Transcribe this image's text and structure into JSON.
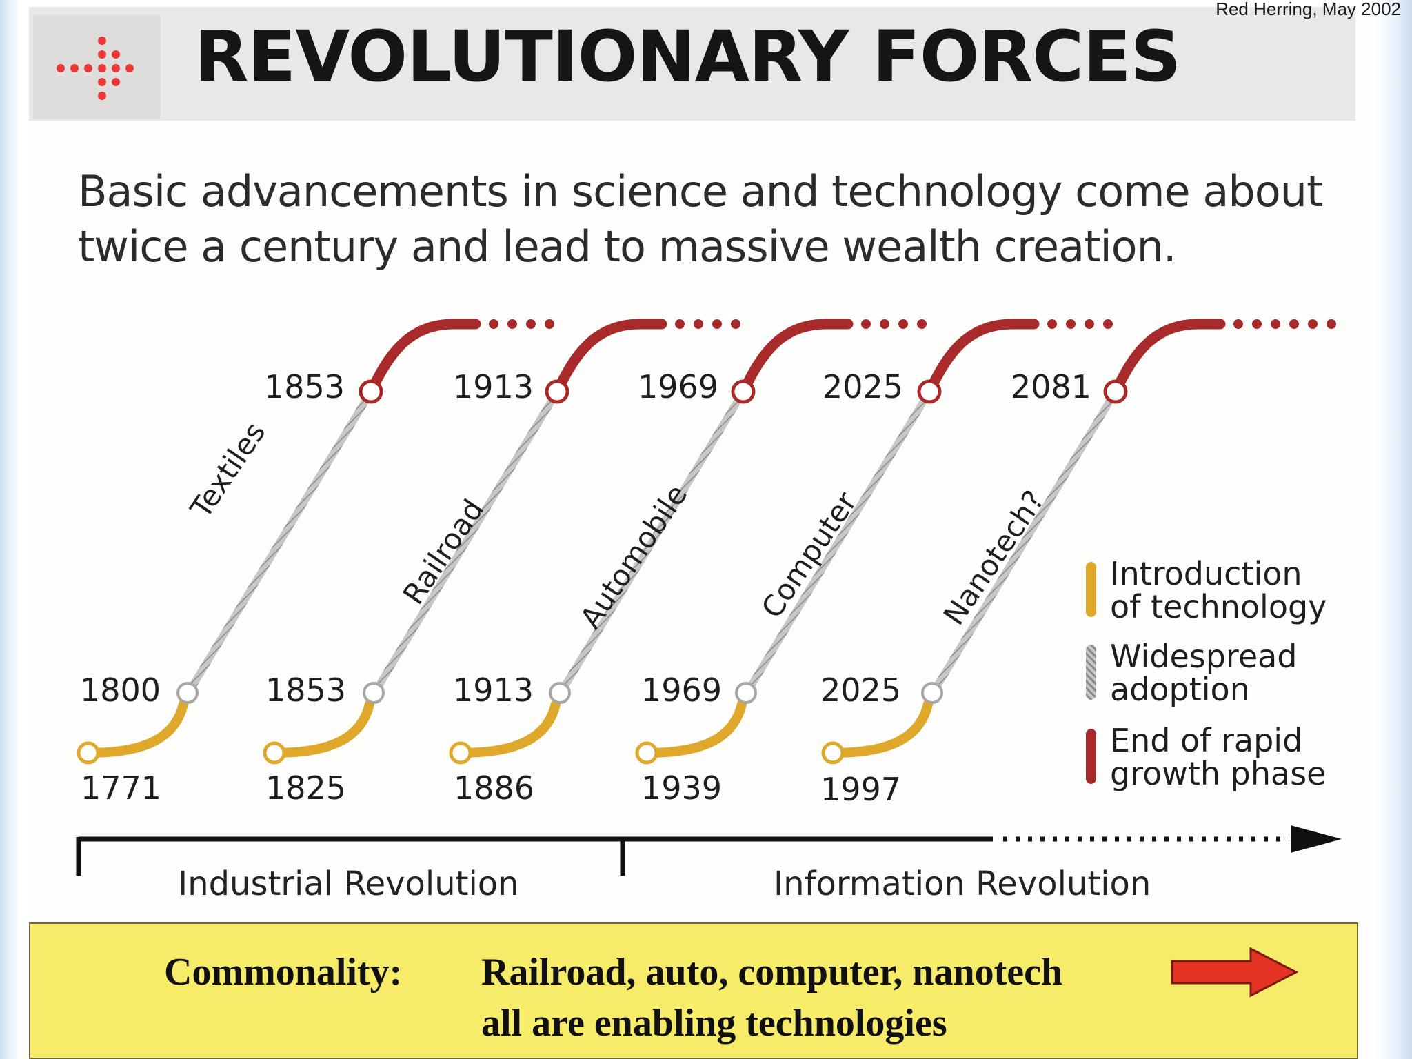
{
  "header": {
    "title": "REVOLUTIONARY FORCES",
    "source": "Red Herring, May 2002"
  },
  "subtitle": {
    "line1": "Basic advancements in science and technology come about",
    "line2": "twice a century and lead to massive wealth creation."
  },
  "waves": [
    {
      "name": "Textiles",
      "intro_year": "1771",
      "adoption_start": "1800",
      "growth_end": "1853"
    },
    {
      "name": "Railroad",
      "intro_year": "1825",
      "adoption_start": "1853",
      "growth_end": "1913"
    },
    {
      "name": "Automobile",
      "intro_year": "1886",
      "adoption_start": "1913",
      "growth_end": "1969"
    },
    {
      "name": "Computer",
      "intro_year": "1939",
      "adoption_start": "1969",
      "growth_end": "2025"
    },
    {
      "name": "Nanotech?",
      "intro_year": "1997",
      "adoption_start": "2025",
      "growth_end": "2081"
    }
  ],
  "legend": [
    {
      "line1": "Introduction",
      "line2": "of technology",
      "color": "#e0a82a"
    },
    {
      "line1": "Widespread",
      "line2": "adoption",
      "color": "#b9b5b5"
    },
    {
      "line1": "End of rapid",
      "line2": "growth phase",
      "color": "#a82a2a"
    }
  ],
  "eras": {
    "industrial": "Industrial Revolution",
    "information": "Information Revolution"
  },
  "commonality": {
    "label": "Commonality:",
    "line1": "Railroad, auto, computer, nanotech",
    "line2": "all are enabling technologies"
  },
  "colors": {
    "intro": "#e0a82a",
    "adoption": "#b9b5b5",
    "growth_end": "#a82a2a",
    "logo_dots": "#e8383a",
    "callout_bg": "#f7ec6a",
    "arrow": "#e53323"
  }
}
